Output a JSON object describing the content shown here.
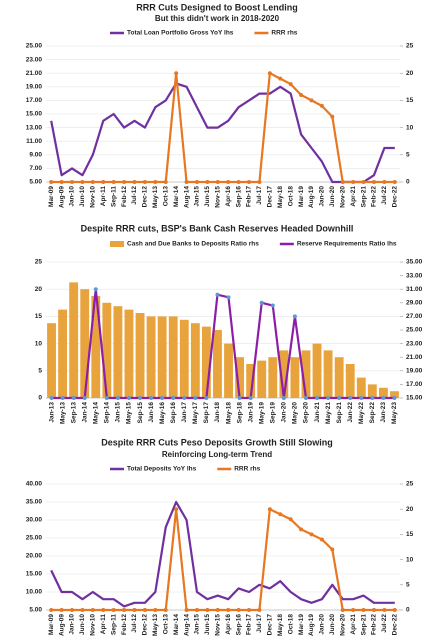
{
  "chart_data": [
    {
      "type": "combo",
      "title": "RRR Cuts Designed to Boost Lending",
      "subtitle": "But this didn't work in 2018-2020",
      "categories": [
        "Mar-09",
        "Aug-09",
        "Jan-10",
        "Jun-10",
        "Nov-10",
        "Apr-11",
        "Sep-11",
        "Feb-12",
        "Jul-12",
        "Dec-12",
        "May-13",
        "Oct-13",
        "Mar-14",
        "Aug-14",
        "Jan-15",
        "Jun-15",
        "Nov-15",
        "Apr-16",
        "Sep-16",
        "Feb-17",
        "Jul-17",
        "Dec-17",
        "May-18",
        "Oct-18",
        "Mar-19",
        "Aug-19",
        "Jan-20",
        "Jun-20",
        "Nov-20",
        "Apr-21",
        "Sep-21",
        "Feb-22",
        "Jul-22",
        "Dec-22"
      ],
      "series": [
        {
          "name": "Total Loan Portfolio Gross YoY lhs",
          "type": "line",
          "color": "#7030a0",
          "marker": null,
          "values": [
            14,
            6,
            7,
            6,
            9,
            14,
            15,
            13,
            14,
            13,
            16,
            17,
            19.5,
            19,
            16,
            13,
            13,
            14,
            16,
            17,
            18,
            18,
            19,
            18,
            12,
            10,
            8,
            5,
            5,
            5,
            5,
            6,
            10,
            10
          ]
        },
        {
          "name": "RRR rhs",
          "type": "line",
          "axis": "y2",
          "color": "#e87722",
          "marker": "#e87722",
          "values": [
            0,
            0,
            0,
            0,
            0,
            0,
            0,
            0,
            0,
            0,
            0,
            0,
            20,
            0,
            0,
            0,
            0,
            0,
            0,
            0,
            0,
            20,
            19,
            18,
            16,
            15,
            14,
            12,
            0,
            0,
            0,
            0,
            0,
            0
          ]
        }
      ],
      "ylim": [
        5,
        25
      ],
      "yticks": [
        {
          "value": 5,
          "label": "5.00"
        },
        {
          "value": 7,
          "label": "7.00"
        },
        {
          "value": 9,
          "label": "9.00"
        },
        {
          "value": 11,
          "label": "11.00"
        },
        {
          "value": 13,
          "label": "13.00"
        },
        {
          "value": 15,
          "label": "15.00"
        },
        {
          "value": 17,
          "label": "17.00"
        },
        {
          "value": 19,
          "label": "19.00"
        },
        {
          "value": 21,
          "label": "21.00"
        },
        {
          "value": 23,
          "label": "23.00"
        },
        {
          "value": 25,
          "label": "25.00"
        }
      ],
      "y2lim": [
        0,
        25
      ],
      "y2ticks": [
        0,
        5,
        10,
        15,
        20,
        25
      ],
      "grid": true
    },
    {
      "type": "combo",
      "title": "Despite RRR cuts, BSP's Bank Cash Reserves Headed Downhill",
      "categories": [
        "Jan-13",
        "May-13",
        "Sep-13",
        "Jan-14",
        "May-14",
        "Sep-14",
        "Jan-15",
        "May-15",
        "Sep-15",
        "Jan-16",
        "May-16",
        "Sep-16",
        "Jan-17",
        "May-17",
        "Sep-17",
        "Jan-18",
        "May-18",
        "Sep-18",
        "Jan-19",
        "May-19",
        "Sep-19",
        "Jan-20",
        "May-20",
        "Sep-20",
        "Jan-21",
        "May-21",
        "Sep-21",
        "Jan-22",
        "May-22",
        "Sep-22",
        "Jan-23",
        "May-23"
      ],
      "series": [
        {
          "name": "Cash and Due Banks to Deposits Ratio rhs",
          "type": "bar",
          "axis": "y2",
          "color": "#e8a33c",
          "values": [
            26,
            28,
            32,
            31,
            30,
            29,
            28.5,
            28,
            27.5,
            27,
            27,
            27,
            26.5,
            26,
            25.5,
            25,
            23,
            21,
            20,
            20.5,
            21,
            22,
            21,
            22,
            23,
            22,
            21,
            20,
            18,
            17,
            16.5,
            16
          ]
        },
        {
          "name": "Reserve Requirements Ratio lhs",
          "type": "line",
          "color": "#8b1fa8",
          "marker": "#5b9bd5",
          "values": [
            0,
            0,
            0,
            0,
            20,
            0,
            0,
            0,
            0,
            0,
            0,
            0,
            0,
            0,
            0,
            19,
            18.5,
            0,
            0,
            17.5,
            17,
            0,
            15,
            0,
            0,
            0,
            0,
            0,
            0,
            0,
            0,
            0
          ]
        }
      ],
      "ylim": [
        0,
        25
      ],
      "yticks": [
        0,
        5,
        10,
        15,
        20,
        25
      ],
      "y2lim": [
        15,
        35
      ],
      "y2ticks": [
        {
          "value": 15,
          "label": "15.00"
        },
        {
          "value": 17,
          "label": "17.00"
        },
        {
          "value": 19,
          "label": "19.00"
        },
        {
          "value": 21,
          "label": "21.00"
        },
        {
          "value": 23,
          "label": "23.00"
        },
        {
          "value": 25,
          "label": "25.00"
        },
        {
          "value": 27,
          "label": "27.00"
        },
        {
          "value": 29,
          "label": "29.00"
        },
        {
          "value": 31,
          "label": "31.00"
        },
        {
          "value": 33,
          "label": "33.00"
        },
        {
          "value": 35,
          "label": "35.00"
        }
      ],
      "grid": true
    },
    {
      "type": "combo",
      "title": "Despite RRR Cuts Peso Deposits Growth Still Slowing",
      "subtitle": "Reinforcing Long-term Trend",
      "categories": [
        "Mar-09",
        "Aug-09",
        "Jan-10",
        "Jun-10",
        "Nov-10",
        "Apr-11",
        "Sep-11",
        "Feb-12",
        "Jul-12",
        "Dec-12",
        "May-13",
        "Oct-13",
        "Mar-14",
        "Aug-14",
        "Jan-15",
        "Jun-15",
        "Nov-15",
        "Apr-16",
        "Sep-16",
        "Feb-17",
        "Jul-17",
        "Dec-17",
        "May-18",
        "Oct-18",
        "Mar-19",
        "Aug-19",
        "Jan-20",
        "Jun-20",
        "Nov-20",
        "Apr-21",
        "Sep-21",
        "Feb-22",
        "Jul-22",
        "Dec-22"
      ],
      "series": [
        {
          "name": "Total Deposits YoY lhs",
          "type": "line",
          "color": "#7030a0",
          "marker": null,
          "values": [
            16,
            10,
            10,
            8,
            10,
            8,
            8,
            6,
            7,
            7,
            10,
            28,
            35,
            30,
            10,
            8,
            9,
            8,
            11,
            10,
            12,
            11,
            13,
            10,
            8,
            7,
            8,
            12,
            8,
            8,
            9,
            7,
            7,
            7
          ]
        },
        {
          "name": "RRR rhs",
          "type": "line",
          "axis": "y2",
          "color": "#e87722",
          "marker": "#e87722",
          "values": [
            0,
            0,
            0,
            0,
            0,
            0,
            0,
            0,
            0,
            0,
            0,
            0,
            20,
            0,
            0,
            0,
            0,
            0,
            0,
            0,
            0,
            20,
            19,
            18,
            16,
            15,
            14,
            12,
            0,
            0,
            0,
            0,
            0,
            0
          ]
        }
      ],
      "ylim": [
        5,
        40
      ],
      "yticks": [
        {
          "value": 5,
          "label": "5.00"
        },
        {
          "value": 10,
          "label": "10.00"
        },
        {
          "value": 15,
          "label": "15.00"
        },
        {
          "value": 20,
          "label": "20.00"
        },
        {
          "value": 25,
          "label": "25.00"
        },
        {
          "value": 30,
          "label": "30.00"
        },
        {
          "value": 35,
          "label": "35.00"
        },
        {
          "value": 40,
          "label": "40.00"
        }
      ],
      "y2lim": [
        0,
        25
      ],
      "y2ticks": [
        0,
        5,
        10,
        15,
        20,
        25
      ],
      "grid": true
    }
  ]
}
